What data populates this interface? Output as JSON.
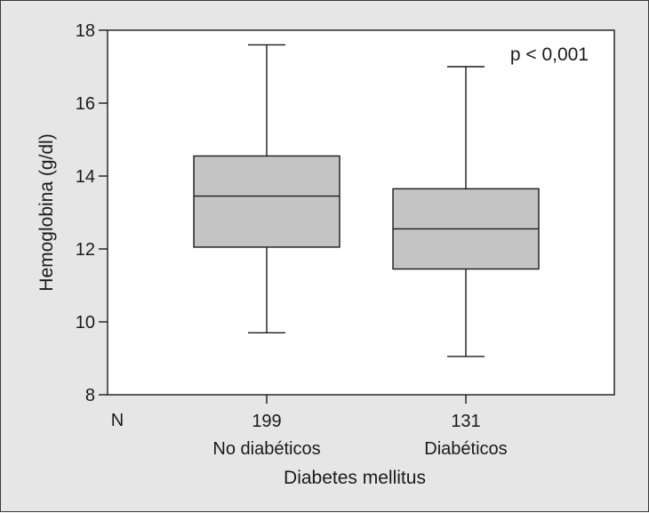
{
  "chart_data": {
    "type": "box",
    "ylabel": "Hemoglobina (g/dl)",
    "xlabel": "Diabetes mellitus",
    "ylim": [
      8,
      18
    ],
    "yticks": [
      8,
      10,
      12,
      14,
      16,
      18
    ],
    "n_label": "N",
    "annotation": "p < 0,001",
    "grid": false,
    "colors": {
      "box_fill": "#c4c4c4",
      "plot_bg": "#ffffff",
      "figure_bg": "#e6e6e6",
      "line": "#1a1a1a"
    },
    "groups": [
      {
        "category": "No diabéticos",
        "n": "199",
        "min": 9.7,
        "q1": 12.05,
        "median": 13.45,
        "q3": 14.55,
        "max": 17.6
      },
      {
        "category": "Diabéticos",
        "n": "131",
        "min": 9.05,
        "q1": 11.45,
        "median": 12.55,
        "q3": 13.65,
        "max": 17.0
      }
    ]
  }
}
